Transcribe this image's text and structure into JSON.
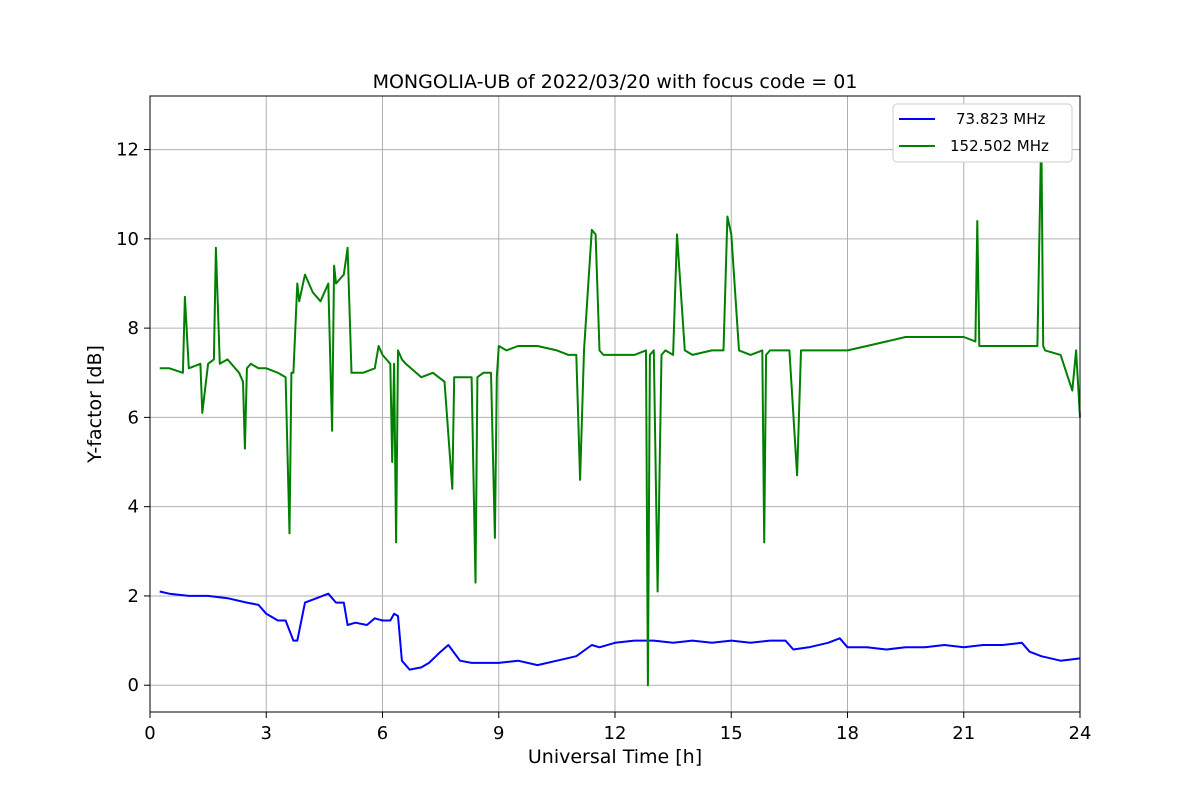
{
  "chart_data": {
    "type": "line",
    "title": "MONGOLIA-UB of 2022/03/20 with focus code = 01",
    "xlabel": "Universal Time [h]",
    "ylabel": "Y-factor [dB]",
    "xlim": [
      0,
      24
    ],
    "ylim": [
      -0.6,
      13.2
    ],
    "xticks": [
      0,
      3,
      6,
      9,
      12,
      15,
      18,
      21,
      24
    ],
    "yticks": [
      0,
      2,
      4,
      6,
      8,
      10,
      12
    ],
    "grid": true,
    "legend_position": "top-right",
    "series": [
      {
        "name": "73.823 MHz",
        "color": "#0000ff",
        "x": [
          0.25,
          0.5,
          1.0,
          1.5,
          2.0,
          2.5,
          2.8,
          3.0,
          3.3,
          3.5,
          3.7,
          3.8,
          4.0,
          4.3,
          4.6,
          4.8,
          5.0,
          5.1,
          5.3,
          5.6,
          5.8,
          6.0,
          6.2,
          6.3,
          6.4,
          6.5,
          6.7,
          7.0,
          7.2,
          7.5,
          7.7,
          8.0,
          8.3,
          8.6,
          9.0,
          9.5,
          10.0,
          10.5,
          11.0,
          11.4,
          11.6,
          12.0,
          12.5,
          13.0,
          13.5,
          14.0,
          14.5,
          15.0,
          15.5,
          16.0,
          16.4,
          16.6,
          17.0,
          17.5,
          17.8,
          18.0,
          18.5,
          19.0,
          19.5,
          20.0,
          20.5,
          21.0,
          21.5,
          22.0,
          22.5,
          22.7,
          23.0,
          23.5,
          24.0
        ],
        "y": [
          2.1,
          2.05,
          2.0,
          2.0,
          1.95,
          1.85,
          1.8,
          1.6,
          1.45,
          1.45,
          1.0,
          1.0,
          1.85,
          1.95,
          2.05,
          1.85,
          1.85,
          1.35,
          1.4,
          1.35,
          1.5,
          1.45,
          1.45,
          1.6,
          1.55,
          0.55,
          0.35,
          0.4,
          0.5,
          0.75,
          0.9,
          0.55,
          0.5,
          0.5,
          0.5,
          0.55,
          0.45,
          0.55,
          0.65,
          0.9,
          0.85,
          0.95,
          1.0,
          1.0,
          0.95,
          1.0,
          0.95,
          1.0,
          0.95,
          1.0,
          1.0,
          0.8,
          0.85,
          0.95,
          1.05,
          0.85,
          0.85,
          0.8,
          0.85,
          0.85,
          0.9,
          0.85,
          0.9,
          0.9,
          0.95,
          0.75,
          0.65,
          0.55,
          0.6
        ]
      },
      {
        "name": "152.502 MHz",
        "color": "#008000",
        "x": [
          0.25,
          0.5,
          0.85,
          0.9,
          1.0,
          1.3,
          1.35,
          1.5,
          1.65,
          1.7,
          1.8,
          2.0,
          2.3,
          2.4,
          2.45,
          2.5,
          2.6,
          2.8,
          3.0,
          3.3,
          3.5,
          3.6,
          3.65,
          3.7,
          3.8,
          3.85,
          4.0,
          4.2,
          4.4,
          4.6,
          4.7,
          4.75,
          4.8,
          5.0,
          5.1,
          5.2,
          5.5,
          5.8,
          5.9,
          6.0,
          6.2,
          6.25,
          6.3,
          6.35,
          6.4,
          6.5,
          6.6,
          7.0,
          7.3,
          7.6,
          7.8,
          7.85,
          8.0,
          8.3,
          8.4,
          8.45,
          8.6,
          8.8,
          8.9,
          8.95,
          9.0,
          9.2,
          9.5,
          10.0,
          10.5,
          10.8,
          11.0,
          11.1,
          11.2,
          11.4,
          11.5,
          11.6,
          11.7,
          12.0,
          12.5,
          12.8,
          12.85,
          12.9,
          13.0,
          13.1,
          13.2,
          13.3,
          13.5,
          13.6,
          13.8,
          14.0,
          14.5,
          14.8,
          14.9,
          15.0,
          15.2,
          15.5,
          15.8,
          15.85,
          15.9,
          16.0,
          16.5,
          16.7,
          16.8,
          17.0,
          17.5,
          18.0,
          18.5,
          19.0,
          19.5,
          20.0,
          20.5,
          21.0,
          21.3,
          21.35,
          21.4,
          21.5,
          22.0,
          22.5,
          22.9,
          23.0,
          23.05,
          23.1,
          23.5,
          23.8,
          23.9,
          24.0
        ],
        "y": [
          7.1,
          7.1,
          7.0,
          8.7,
          7.1,
          7.2,
          6.1,
          7.2,
          7.3,
          9.8,
          7.2,
          7.3,
          7.0,
          6.8,
          5.3,
          7.1,
          7.2,
          7.1,
          7.1,
          7.0,
          6.9,
          3.4,
          7.0,
          7.0,
          9.0,
          8.6,
          9.2,
          8.8,
          8.6,
          9.0,
          5.7,
          9.4,
          9.0,
          9.2,
          9.8,
          7.0,
          7.0,
          7.1,
          7.6,
          7.4,
          7.2,
          5.0,
          7.2,
          3.2,
          7.5,
          7.3,
          7.2,
          6.9,
          7.0,
          6.8,
          4.4,
          6.9,
          6.9,
          6.9,
          2.3,
          6.9,
          7.0,
          7.0,
          3.3,
          6.9,
          7.6,
          7.5,
          7.6,
          7.6,
          7.5,
          7.4,
          7.4,
          4.6,
          7.5,
          10.2,
          10.1,
          7.5,
          7.4,
          7.4,
          7.4,
          7.5,
          0.0,
          7.4,
          7.5,
          2.1,
          7.4,
          7.5,
          7.4,
          10.1,
          7.5,
          7.4,
          7.5,
          7.5,
          10.5,
          10.1,
          7.5,
          7.4,
          7.5,
          3.2,
          7.4,
          7.5,
          7.5,
          4.7,
          7.5,
          7.5,
          7.5,
          7.5,
          7.6,
          7.7,
          7.8,
          7.8,
          7.8,
          7.8,
          7.7,
          10.4,
          7.6,
          7.6,
          7.6,
          7.6,
          7.6,
          12.4,
          7.6,
          7.5,
          7.4,
          6.6,
          7.5,
          6.0
        ]
      }
    ]
  }
}
